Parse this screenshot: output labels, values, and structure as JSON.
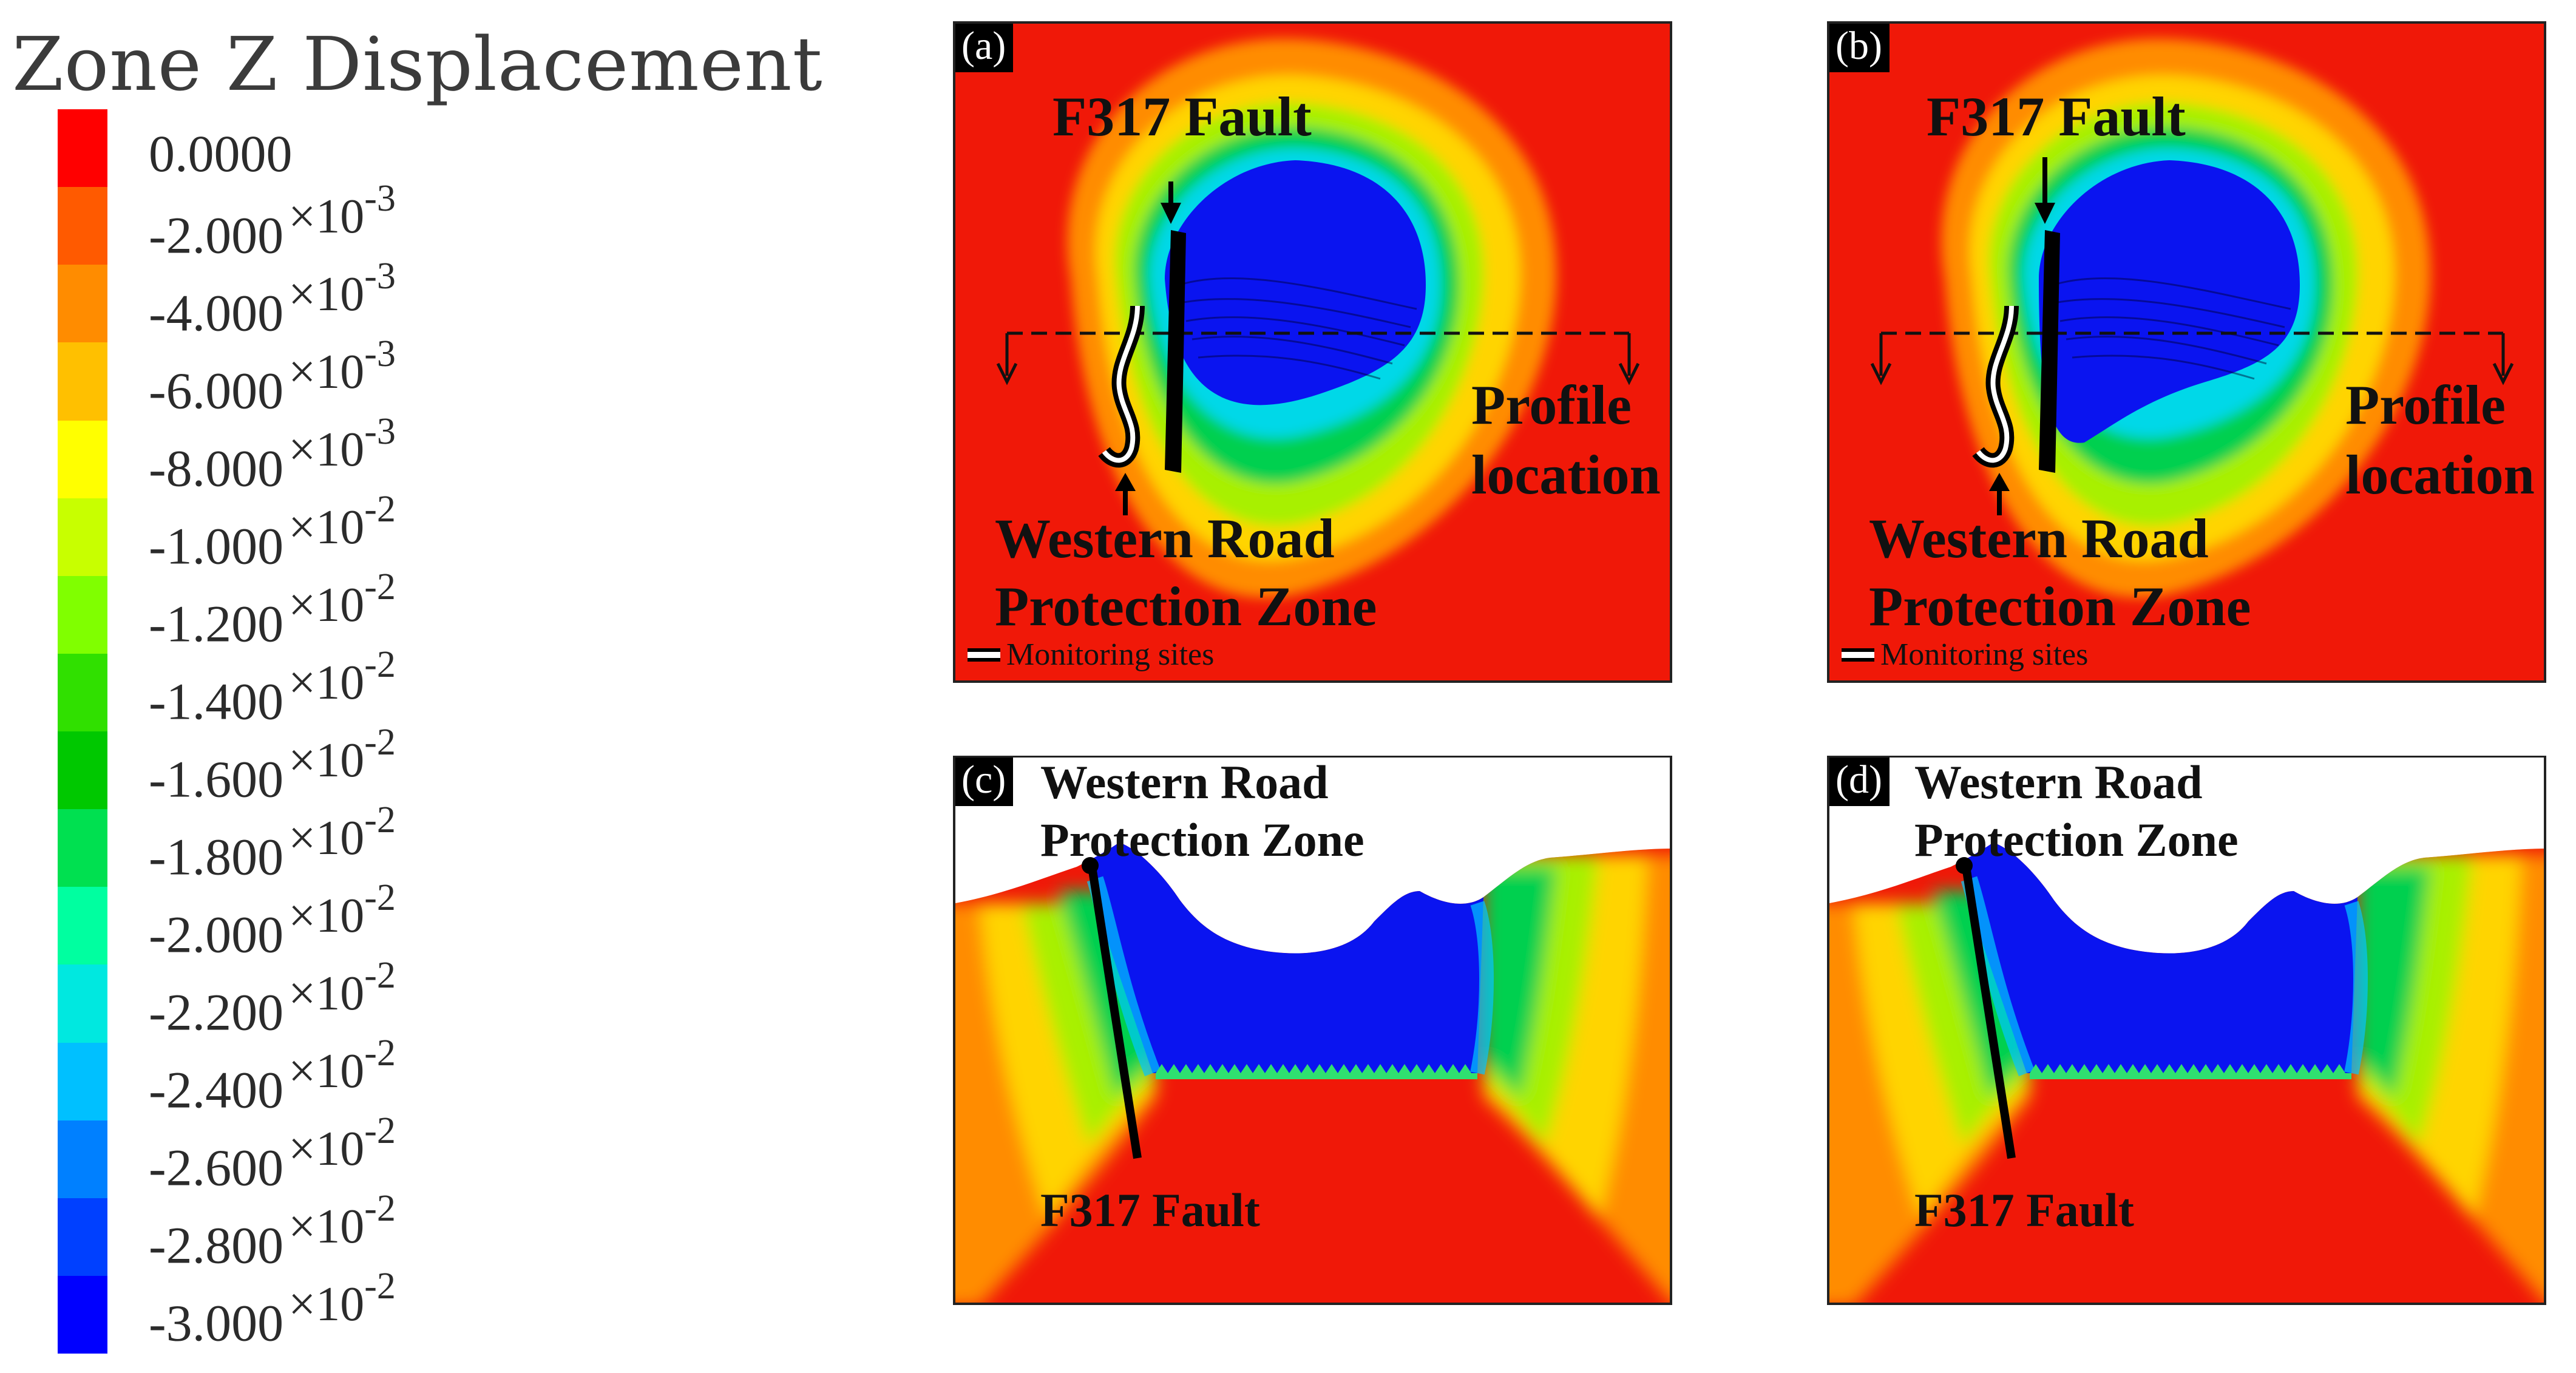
{
  "legend": {
    "title": "Zone Z Displacement",
    "colors": [
      "#ff0000",
      "#ff5a00",
      "#ff8c00",
      "#ffc000",
      "#ffff00",
      "#c8ff00",
      "#80ff00",
      "#30e000",
      "#00c800",
      "#00e050",
      "#00ffa0",
      "#00e8e0",
      "#00c0ff",
      "#0080ff",
      "#0040ff",
      "#0000ff"
    ],
    "ticks": [
      {
        "value": "0.0000",
        "mag": ""
      },
      {
        "value": "-2.000",
        "mag": "×10",
        "exp": "-3"
      },
      {
        "value": "-4.000",
        "mag": "×10",
        "exp": "-3"
      },
      {
        "value": "-6.000",
        "mag": "×10",
        "exp": "-3"
      },
      {
        "value": "-8.000",
        "mag": "×10",
        "exp": "-3"
      },
      {
        "value": "-1.000",
        "mag": "×10",
        "exp": "-2"
      },
      {
        "value": "-1.200",
        "mag": "×10",
        "exp": "-2"
      },
      {
        "value": "-1.400",
        "mag": "×10",
        "exp": "-2"
      },
      {
        "value": "-1.600",
        "mag": "×10",
        "exp": "-2"
      },
      {
        "value": "-1.800",
        "mag": "×10",
        "exp": "-2"
      },
      {
        "value": "-2.000",
        "mag": "×10",
        "exp": "-2"
      },
      {
        "value": "-2.200",
        "mag": "×10",
        "exp": "-2"
      },
      {
        "value": "-2.400",
        "mag": "×10",
        "exp": "-2"
      },
      {
        "value": "-2.600",
        "mag": "×10",
        "exp": "-2"
      },
      {
        "value": "-2.800",
        "mag": "×10",
        "exp": "-2"
      },
      {
        "value": "-3.000",
        "mag": "×10",
        "exp": "-2"
      }
    ]
  },
  "panels": {
    "a": {
      "label": "(a)",
      "fault": "F317 Fault",
      "profile_1": "Profile",
      "profile_2": "location",
      "zone_1": "Western Road",
      "zone_2": "Protection Zone",
      "monitor": "Monitoring sites"
    },
    "b": {
      "label": "(b)",
      "fault": "F317 Fault",
      "profile_1": "Profile",
      "profile_2": "location",
      "zone_1": "Western Road",
      "zone_2": "Protection Zone",
      "monitor": "Monitoring sites"
    },
    "c": {
      "label": "(c)",
      "zone_1": "Western Road",
      "zone_2": "Protection Zone",
      "fault": "F317 Fault"
    },
    "d": {
      "label": "(d)",
      "zone_1": "Western Road",
      "zone_2": "Protection Zone",
      "fault": "F317 Fault"
    }
  }
}
